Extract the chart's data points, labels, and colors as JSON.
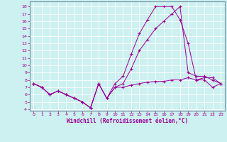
{
  "bg_color": "#cdf0f0",
  "line_color": "#990099",
  "grid_color": "#ffffff",
  "xlabel": "Windchill (Refroidissement éolien,°C)",
  "xlabel_color": "#990099",
  "ylabel_ticks": [
    4,
    5,
    6,
    7,
    8,
    9,
    10,
    11,
    12,
    13,
    14,
    15,
    16,
    17,
    18
  ],
  "xlabel_ticks": [
    0,
    1,
    2,
    3,
    4,
    5,
    6,
    7,
    8,
    9,
    10,
    11,
    12,
    13,
    14,
    15,
    16,
    17,
    18,
    19,
    20,
    21,
    22,
    23
  ],
  "ylim": [
    3.8,
    18.7
  ],
  "xlim": [
    -0.5,
    23.5
  ],
  "line1_x": [
    0,
    1,
    2,
    3,
    4,
    5,
    6,
    7,
    8,
    9,
    10,
    11,
    12,
    13,
    14,
    15,
    16,
    17,
    18,
    19,
    20,
    21,
    22,
    23
  ],
  "line1_y": [
    7.5,
    7.0,
    6.0,
    6.5,
    6.0,
    5.5,
    5.0,
    4.2,
    7.5,
    5.5,
    7.0,
    7.0,
    7.3,
    7.5,
    7.7,
    7.8,
    7.8,
    8.0,
    8.0,
    8.3,
    8.0,
    8.3,
    8.3,
    7.5
  ],
  "line2_x": [
    0,
    1,
    2,
    3,
    4,
    5,
    6,
    7,
    8,
    9,
    10,
    11,
    12,
    13,
    14,
    15,
    16,
    17,
    18,
    19,
    20,
    21,
    22,
    23
  ],
  "line2_y": [
    7.5,
    7.0,
    6.0,
    6.5,
    6.0,
    5.5,
    5.0,
    4.2,
    7.5,
    5.5,
    7.5,
    8.5,
    11.5,
    14.3,
    16.2,
    18.0,
    18.0,
    18.0,
    16.2,
    13.0,
    8.0,
    8.0,
    7.0,
    7.5
  ],
  "line3_x": [
    0,
    1,
    2,
    3,
    4,
    5,
    6,
    7,
    8,
    9,
    10,
    11,
    12,
    13,
    14,
    15,
    16,
    17,
    18,
    19,
    20,
    21,
    22,
    23
  ],
  "line3_y": [
    7.5,
    7.0,
    6.0,
    6.5,
    6.0,
    5.5,
    5.0,
    4.2,
    7.5,
    5.5,
    7.0,
    7.5,
    9.5,
    12.0,
    13.5,
    15.0,
    16.0,
    17.0,
    18.0,
    9.0,
    8.5,
    8.5,
    8.0,
    7.5
  ]
}
